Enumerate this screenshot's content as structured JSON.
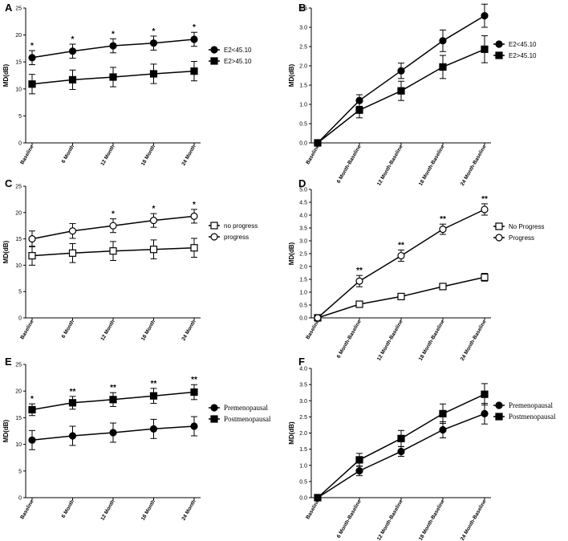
{
  "chart_data": [
    {
      "panel": "A",
      "type": "line",
      "categories": [
        "Baseline",
        "6 Month",
        "12 Month",
        "18 Month",
        "24 Month"
      ],
      "ylabel": "MD(dB)",
      "ylim": [
        0,
        25
      ],
      "yticks": [
        0,
        5,
        10,
        15,
        20,
        25
      ],
      "legend_position": "right",
      "legend_font": "sans",
      "series": [
        {
          "name": "E2<45.10",
          "marker": "filled-circle",
          "values": [
            15.8,
            17.0,
            18.0,
            18.5,
            19.2
          ],
          "errors": [
            1.3,
            1.3,
            1.3,
            1.3,
            1.3
          ]
        },
        {
          "name": "E2>45.10",
          "marker": "filled-square",
          "values": [
            10.9,
            11.7,
            12.2,
            12.8,
            13.3
          ],
          "errors": [
            1.8,
            1.8,
            1.8,
            1.8,
            1.8
          ]
        }
      ],
      "annotations": [
        {
          "index": 0,
          "text": "*"
        },
        {
          "index": 1,
          "text": "*"
        },
        {
          "index": 2,
          "text": "*"
        },
        {
          "index": 3,
          "text": "*"
        },
        {
          "index": 4,
          "text": "*"
        }
      ]
    },
    {
      "panel": "B",
      "type": "line",
      "categories": [
        "Baseline",
        "6 Month-Baseline",
        "12 Month-Baseline",
        "18 Month-Baseline",
        "24 Month-Baseline"
      ],
      "ylabel": "MD(dB)",
      "ylim": [
        0,
        3.5
      ],
      "yticks": [
        "0.0",
        "0.5",
        "1.0",
        "1.5",
        "2.0",
        "2.5",
        "3.0",
        "3.5"
      ],
      "legend_position": "top-right",
      "legend_font": "sans",
      "series": [
        {
          "name": "E2<45.10",
          "marker": "filled-circle",
          "values": [
            0,
            1.1,
            1.87,
            2.65,
            3.3
          ],
          "errors": [
            0,
            0.15,
            0.2,
            0.28,
            0.3
          ]
        },
        {
          "name": "E2>45.10",
          "marker": "filled-square",
          "values": [
            0,
            0.85,
            1.35,
            1.97,
            2.43
          ],
          "errors": [
            0,
            0.2,
            0.25,
            0.3,
            0.35
          ]
        }
      ],
      "annotations": []
    },
    {
      "panel": "C",
      "type": "line",
      "categories": [
        "Baseline",
        "6 Month",
        "12 Month",
        "18 Month",
        "24 Month"
      ],
      "ylabel": "MD(dB)",
      "ylim": [
        0,
        25
      ],
      "yticks": [
        0,
        5,
        10,
        15,
        20,
        25
      ],
      "legend_position": "right",
      "legend_font": "sans",
      "series": [
        {
          "name": "no progress",
          "marker": "open-square",
          "values": [
            11.8,
            12.3,
            12.7,
            13.0,
            13.3
          ],
          "errors": [
            1.8,
            1.8,
            1.8,
            1.8,
            1.8
          ]
        },
        {
          "name": "progress",
          "marker": "open-circle",
          "values": [
            15.0,
            16.5,
            17.5,
            18.5,
            19.3
          ],
          "errors": [
            1.5,
            1.4,
            1.3,
            1.3,
            1.3
          ]
        }
      ],
      "annotations": [
        {
          "index": 2,
          "text": "*"
        },
        {
          "index": 3,
          "text": "*"
        },
        {
          "index": 4,
          "text": "*"
        }
      ]
    },
    {
      "panel": "D",
      "type": "line",
      "categories": [
        "Baseline",
        "6 Month-Baseline",
        "12 Month-Baseline",
        "18 Month-Baseline",
        "24 Month-Baseline"
      ],
      "ylabel": "MD(dB)",
      "ylim": [
        0,
        5
      ],
      "yticks": [
        "0.0",
        "0.5",
        "1.0",
        "1.5",
        "2.0",
        "2.5",
        "3.0",
        "3.5",
        "4.0",
        "4.5",
        "5.0"
      ],
      "legend_position": "right",
      "legend_font": "sans",
      "series": [
        {
          "name": "No Progress",
          "marker": "open-square",
          "values": [
            0,
            0.53,
            0.83,
            1.22,
            1.58
          ],
          "errors": [
            0,
            0.06,
            0.08,
            0.12,
            0.15
          ]
        },
        {
          "name": "Progress",
          "marker": "open-circle",
          "values": [
            0,
            1.43,
            2.42,
            3.45,
            4.22
          ],
          "errors": [
            0,
            0.22,
            0.22,
            0.2,
            0.22
          ]
        }
      ],
      "annotations": [
        {
          "index": 1,
          "text": "**"
        },
        {
          "index": 2,
          "text": "**"
        },
        {
          "index": 3,
          "text": "**"
        },
        {
          "index": 4,
          "text": "**"
        }
      ]
    },
    {
      "panel": "E",
      "type": "line",
      "categories": [
        "Baseline",
        "6 Month",
        "12 Month",
        "18 Month",
        "24 Month"
      ],
      "ylabel": "MD(dB)",
      "ylim": [
        0,
        25
      ],
      "yticks": [
        0,
        5,
        10,
        15,
        20,
        25
      ],
      "legend_position": "right",
      "legend_font": "serif",
      "series": [
        {
          "name": "Premenopausal",
          "marker": "filled-circle",
          "values": [
            10.8,
            11.6,
            12.2,
            12.9,
            13.4
          ],
          "errors": [
            1.8,
            1.8,
            1.8,
            1.8,
            1.8
          ]
        },
        {
          "name": "Postmenopausal",
          "marker": "filled-square",
          "values": [
            16.5,
            17.8,
            18.4,
            19.1,
            19.8
          ],
          "errors": [
            1.1,
            1.2,
            1.3,
            1.4,
            1.4
          ]
        }
      ],
      "annotations": [
        {
          "index": 0,
          "text": "*"
        },
        {
          "index": 1,
          "text": "**"
        },
        {
          "index": 2,
          "text": "**"
        },
        {
          "index": 3,
          "text": "**"
        },
        {
          "index": 4,
          "text": "**"
        }
      ]
    },
    {
      "panel": "F",
      "type": "line",
      "categories": [
        "Baseline",
        "6 Month-Baseline",
        "12 Month-Baseline",
        "18 Month-Baseline",
        "24 Month-Baseline"
      ],
      "ylabel": "MD(dB)",
      "ylim": [
        0,
        4
      ],
      "yticks": [
        "0.0",
        "0.5",
        "1.0",
        "1.5",
        "2.0",
        "2.5",
        "3.0",
        "3.5",
        "4.0"
      ],
      "legend_position": "right",
      "legend_font": "serif",
      "series": [
        {
          "name": "Premenopausal",
          "marker": "filled-circle",
          "values": [
            0,
            0.83,
            1.43,
            2.1,
            2.6
          ],
          "errors": [
            0,
            0.15,
            0.15,
            0.25,
            0.32
          ]
        },
        {
          "name": "Postmenopausal",
          "marker": "filled-square",
          "values": [
            0,
            1.17,
            1.83,
            2.6,
            3.2
          ],
          "errors": [
            0,
            0.2,
            0.25,
            0.3,
            0.33
          ]
        }
      ],
      "annotations": []
    }
  ]
}
